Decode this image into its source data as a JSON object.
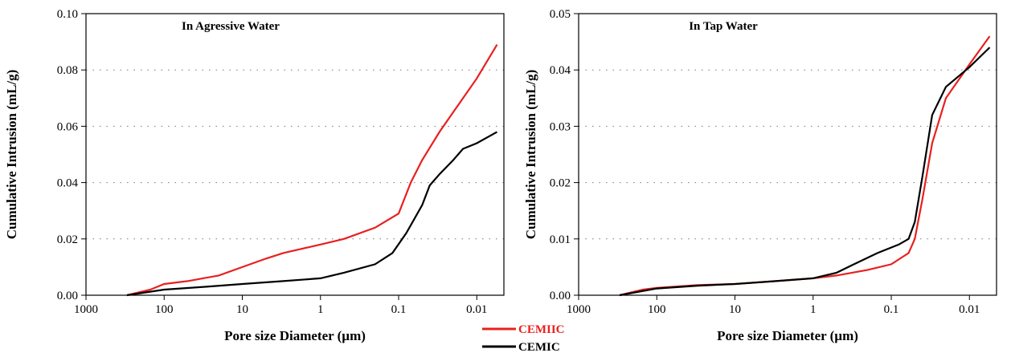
{
  "chart_data": [
    {
      "type": "line",
      "title": "In Agressive Water",
      "xlabel": "Pore size Diameter (µm)",
      "ylabel": "Cumulative Intrusion (mL/g)",
      "xscale": "log",
      "xlim": [
        1000,
        0.0045
      ],
      "xticks": [
        1000,
        100,
        10,
        1,
        0.1,
        0.01
      ],
      "ylim": [
        0,
        0.1
      ],
      "yticks": [
        {
          "value": 0,
          "label": "0.00"
        },
        0.02,
        0.04,
        0.06,
        0.08,
        {
          "value": 0.1,
          "label": "0.10"
        }
      ],
      "grid": true,
      "series": [
        {
          "name": "CEMIIC",
          "color": "#e8201f",
          "x": [
            300,
            150,
            100,
            50,
            20,
            10,
            5,
            3,
            1,
            0.5,
            0.2,
            0.1,
            0.07,
            0.05,
            0.03,
            0.02,
            0.01,
            0.0055
          ],
          "values": [
            0,
            0.002,
            0.004,
            0.005,
            0.007,
            0.01,
            0.013,
            0.015,
            0.018,
            0.02,
            0.024,
            0.029,
            0.04,
            0.048,
            0.058,
            0.065,
            0.077,
            0.089
          ]
        },
        {
          "name": "CEMIC",
          "color": "#000000",
          "x": [
            300,
            100,
            30,
            10,
            3,
            1,
            0.5,
            0.2,
            0.12,
            0.08,
            0.05,
            0.04,
            0.03,
            0.02,
            0.015,
            0.01,
            0.0055
          ],
          "values": [
            0,
            0.002,
            0.003,
            0.004,
            0.005,
            0.006,
            0.008,
            0.011,
            0.015,
            0.022,
            0.032,
            0.039,
            0.043,
            0.048,
            0.052,
            0.054,
            0.058
          ]
        }
      ]
    },
    {
      "type": "line",
      "title": "In Tap Water",
      "xlabel": "Pore size Diameter (µm)",
      "ylabel": "Cumulative Intrusion (mL/g)",
      "xscale": "log",
      "xlim": [
        1000,
        0.0045
      ],
      "xticks": [
        1000,
        100,
        10,
        1,
        0.1,
        0.01
      ],
      "ylim": [
        0,
        0.05
      ],
      "yticks": [
        {
          "value": 0,
          "label": "0.00"
        },
        0.01,
        0.02,
        0.03,
        0.04,
        0.05
      ],
      "grid": true,
      "series": [
        {
          "color": "#e8201f",
          "x": [
            300,
            150,
            100,
            30,
            10,
            3,
            1,
            0.5,
            0.2,
            0.1,
            0.06,
            0.05,
            0.04,
            0.03,
            0.02,
            0.01,
            0.0055
          ],
          "values": [
            0,
            0.001,
            0.0013,
            0.0018,
            0.002,
            0.0025,
            0.003,
            0.0035,
            0.0045,
            0.0055,
            0.0075,
            0.01,
            0.017,
            0.027,
            0.035,
            0.041,
            0.046
          ]
        },
        {
          "color": "#000000",
          "x": [
            300,
            100,
            30,
            10,
            3,
            1,
            0.5,
            0.3,
            0.15,
            0.08,
            0.06,
            0.05,
            0.04,
            0.03,
            0.02,
            0.01,
            0.0055
          ],
          "values": [
            0,
            0.0012,
            0.0017,
            0.002,
            0.0025,
            0.003,
            0.004,
            0.0055,
            0.0075,
            0.009,
            0.01,
            0.013,
            0.021,
            0.032,
            0.037,
            0.0405,
            0.044
          ]
        }
      ]
    }
  ]
}
